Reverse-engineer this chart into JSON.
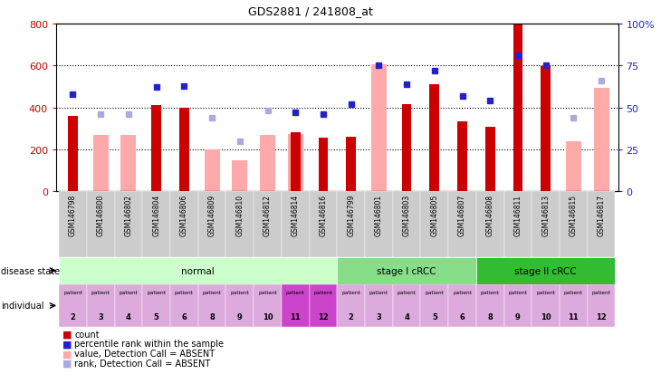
{
  "title": "GDS2881 / 241808_at",
  "samples": [
    "GSM146798",
    "GSM146800",
    "GSM146802",
    "GSM146804",
    "GSM146806",
    "GSM146809",
    "GSM146810",
    "GSM146812",
    "GSM146814",
    "GSM146816",
    "GSM146799",
    "GSM146801",
    "GSM146803",
    "GSM146805",
    "GSM146807",
    "GSM146808",
    "GSM146811",
    "GSM146813",
    "GSM146815",
    "GSM146817"
  ],
  "count_values": [
    360,
    0,
    0,
    410,
    400,
    0,
    0,
    0,
    280,
    255,
    260,
    0,
    415,
    510,
    335,
    308,
    795,
    595,
    0,
    0
  ],
  "pink_bar_values": [
    0,
    270,
    270,
    0,
    0,
    200,
    150,
    270,
    275,
    0,
    0,
    605,
    0,
    0,
    0,
    0,
    0,
    0,
    240,
    495
  ],
  "blue_square_values": [
    58,
    0,
    0,
    62,
    63,
    0,
    0,
    0,
    47,
    46,
    52,
    75,
    64,
    72,
    57,
    54,
    81,
    75,
    0,
    0
  ],
  "lavender_square_values": [
    0,
    46,
    46,
    0,
    0,
    44,
    30,
    48,
    0,
    0,
    0,
    0,
    0,
    0,
    0,
    0,
    0,
    0,
    44,
    66
  ],
  "disease_states": [
    {
      "label": "normal",
      "start": 0,
      "end": 10,
      "color": "#ccffcc"
    },
    {
      "label": "stage I cRCC",
      "start": 10,
      "end": 15,
      "color": "#88dd88"
    },
    {
      "label": "stage II cRCC",
      "start": 15,
      "end": 20,
      "color": "#33bb33"
    }
  ],
  "patient_numbers": [
    "2",
    "3",
    "4",
    "5",
    "6",
    "8",
    "9",
    "10",
    "11",
    "12",
    "2",
    "3",
    "4",
    "5",
    "6",
    "8",
    "9",
    "10",
    "11",
    "12"
  ],
  "patient_highlight": [
    false,
    false,
    false,
    false,
    false,
    false,
    false,
    false,
    true,
    true,
    false,
    false,
    false,
    false,
    false,
    false,
    false,
    false,
    false,
    false
  ],
  "ylim_left": [
    0,
    800
  ],
  "ylim_right": [
    0,
    100
  ],
  "yticks_left": [
    0,
    200,
    400,
    600,
    800
  ],
  "yticks_right": [
    0,
    25,
    50,
    75,
    100
  ],
  "yticklabels_right": [
    "0",
    "25",
    "50",
    "75",
    "100%"
  ],
  "bar_color": "#cc0000",
  "pink_color": "#ffaaaa",
  "blue_color": "#2222cc",
  "lavender_color": "#aaaadd",
  "bg_color": "#ffffff",
  "axis_label_color_left": "#cc0000",
  "axis_label_color_right": "#2222cc",
  "xtick_bg": "#cccccc",
  "normal_bg": "#ddffdd",
  "stage1_bg": "#88ee88",
  "stage2_bg": "#44cc44",
  "indiv_bg_normal": "#ddaadd",
  "indiv_bg_highlight": "#cc44cc"
}
